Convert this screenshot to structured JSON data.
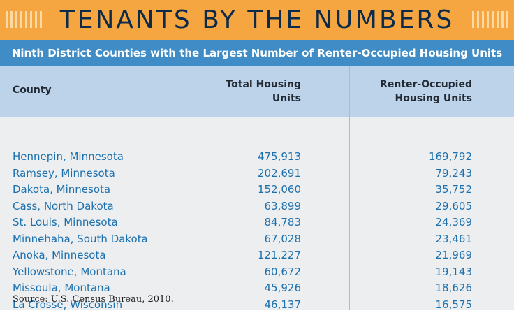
{
  "banner": {
    "title": "TENANTS BY THE NUMBERS"
  },
  "subtitle": "Ninth District Counties with the Largest Number of Renter-Occupied Housing Units",
  "table": {
    "headers": {
      "county": "County",
      "total_line1": "Total Housing",
      "total_line2": "Units",
      "renter_line1": "Renter-Occupied",
      "renter_line2": "Housing Units"
    },
    "rows": [
      {
        "county": "Hennepin, Minnesota",
        "total": "475,913",
        "renter": "169,792"
      },
      {
        "county": "Ramsey, Minnesota",
        "total": "202,691",
        "renter": "79,243"
      },
      {
        "county": "Dakota, Minnesota",
        "total": "152,060",
        "renter": "35,752"
      },
      {
        "county": "Cass, North Dakota",
        "total": "63,899",
        "renter": "29,605"
      },
      {
        "county": "St. Louis, Minnesota",
        "total": "84,783",
        "renter": "24,369"
      },
      {
        "county": "Minnehaha, South Dakota",
        "total": "67,028",
        "renter": "23,461"
      },
      {
        "county": "Anoka, Minnesota",
        "total": "121,227",
        "renter": "21,969"
      },
      {
        "county": "Yellowstone, Montana",
        "total": "60,672",
        "renter": "19,143"
      },
      {
        "county": "Missoula, Montana",
        "total": "45,926",
        "renter": "18,626"
      },
      {
        "county": "La Crosse, Wisconsin",
        "total": "46,137",
        "renter": "16,575"
      }
    ]
  },
  "source": "Source: U.S. Census Bureau, 2010.",
  "colors": {
    "banner": "#f5a640",
    "title_text": "#0c2a4a",
    "subtitle_bar": "#3f8cc6",
    "header_row": "#bcd3ea",
    "body_bg": "#eceef0",
    "data_text": "#1c70ad"
  }
}
